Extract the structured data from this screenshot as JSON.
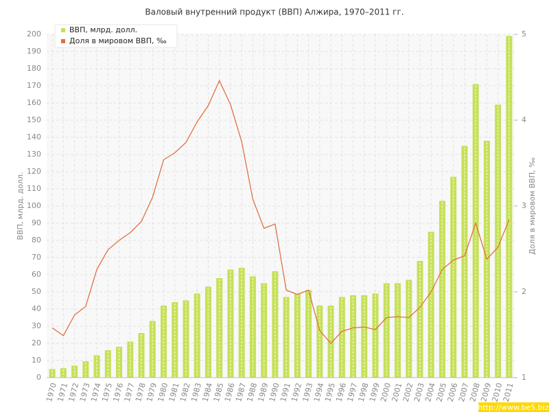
{
  "chart_data": {
    "type": "bar",
    "title": "Валовый внутренний продукт (ВВП) Алжира, 1970–2011 гг.",
    "ylabel": "ВВП, млрд. долл.",
    "y2label": "Доля в мировом ВВП, ‰",
    "categories": [
      "1970",
      "1971",
      "1972",
      "1973",
      "1974",
      "1975",
      "1976",
      "1977",
      "1978",
      "1979",
      "1980",
      "1981",
      "1982",
      "1983",
      "1984",
      "1985",
      "1986",
      "1987",
      "1988",
      "1989",
      "1990",
      "1991",
      "1992",
      "1993",
      "1994",
      "1995",
      "1996",
      "1997",
      "1998",
      "1999",
      "2000",
      "2001",
      "2002",
      "2003",
      "2004",
      "2005",
      "2006",
      "2007",
      "2008",
      "2009",
      "2010",
      "2011"
    ],
    "series": [
      {
        "name": "ВВП, млрд. долл.",
        "color": "#c5e05a",
        "type": "bar",
        "values": [
          5,
          5.5,
          7,
          9.5,
          13,
          16,
          18,
          21,
          26,
          33,
          42,
          44,
          45,
          49,
          53,
          58,
          63,
          64,
          59,
          55,
          62,
          47,
          49,
          51,
          42,
          42,
          47,
          48,
          48,
          49,
          55,
          55,
          57,
          68,
          85,
          103,
          117,
          135,
          171,
          138,
          159,
          199
        ]
      },
      {
        "name": "Доля в мировом ВВП, ‰",
        "color": "#e07040",
        "type": "line",
        "axis": "y2",
        "values": [
          1.58,
          1.49,
          1.73,
          1.83,
          2.26,
          2.49,
          2.6,
          2.69,
          2.82,
          3.1,
          3.54,
          3.62,
          3.74,
          3.98,
          4.17,
          4.46,
          4.18,
          3.75,
          3.08,
          2.74,
          2.79,
          2.02,
          1.97,
          2.02,
          1.55,
          1.4,
          1.54,
          1.58,
          1.59,
          1.56,
          1.7,
          1.71,
          1.7,
          1.82,
          2.0,
          2.26,
          2.37,
          2.42,
          2.8,
          2.38,
          2.52,
          2.84
        ]
      }
    ],
    "ylim": [
      0,
      200
    ],
    "yticks": [
      0,
      10,
      20,
      30,
      40,
      50,
      60,
      70,
      80,
      90,
      100,
      110,
      120,
      130,
      140,
      150,
      160,
      170,
      180,
      190,
      200
    ],
    "y2lim": [
      1,
      5
    ],
    "y2ticks": [
      1,
      2,
      3,
      4,
      5
    ],
    "grid": true,
    "legend": "top-left"
  },
  "watermark": "http://www.be5.biz"
}
